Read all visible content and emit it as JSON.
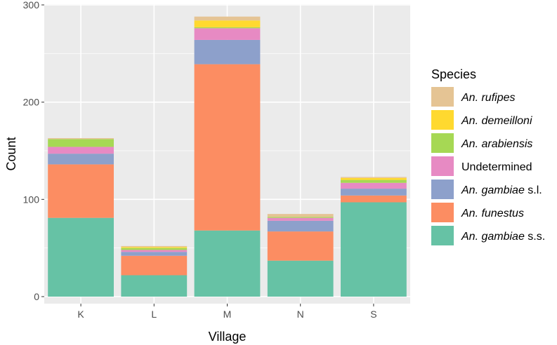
{
  "chart_data": {
    "type": "bar",
    "stacked": true,
    "xlabel": "Village",
    "ylabel": "Count",
    "ylim": [
      0,
      300
    ],
    "yticks": [
      0,
      100,
      200,
      300
    ],
    "categories": [
      "K",
      "L",
      "M",
      "N",
      "S"
    ],
    "grid": true,
    "legend_position": "right",
    "legend_title": "Species",
    "series": [
      {
        "name": "An. gambiae s.s.",
        "italic_part": "An. gambiae",
        "suffix": " s.s.",
        "color": "#66c2a5",
        "values": [
          81,
          22,
          68,
          37,
          97
        ]
      },
      {
        "name": "An. funestus",
        "italic_part": "An. funestus",
        "suffix": "",
        "color": "#fc8d62",
        "values": [
          55,
          20,
          171,
          30,
          7
        ]
      },
      {
        "name": "An. gambiae s.l.",
        "italic_part": "An. gambiae",
        "suffix": " s.l.",
        "color": "#8da0cb",
        "values": [
          11,
          4,
          25,
          11,
          7
        ]
      },
      {
        "name": "Undetermined",
        "italic_part": "",
        "suffix": "Undetermined",
        "color": "#e78ac3",
        "values": [
          7,
          2,
          12,
          3,
          6
        ]
      },
      {
        "name": "An. arabiensis",
        "italic_part": "An. arabiensis",
        "suffix": "",
        "color": "#a6d854",
        "values": [
          8,
          2,
          1,
          1,
          3
        ]
      },
      {
        "name": "An. demeilloni",
        "italic_part": "An. demeilloni",
        "suffix": "",
        "color": "#ffd92f",
        "values": [
          0,
          1,
          7,
          0,
          2
        ]
      },
      {
        "name": "An. rufipes",
        "italic_part": "An. rufipes",
        "suffix": "",
        "color": "#e5c494",
        "values": [
          1,
          1,
          4,
          3,
          1
        ]
      }
    ]
  }
}
